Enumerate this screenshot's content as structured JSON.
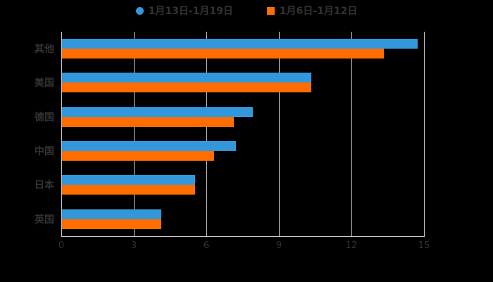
{
  "chart_data": {
    "type": "bar",
    "orientation": "horizontal",
    "title": "",
    "categories": [
      "其他",
      "美国",
      "德国",
      "中国",
      "日本",
      "英国"
    ],
    "series": [
      {
        "name": "1月13日-1月19日",
        "color": "#3398DB",
        "marker": "circle",
        "values": [
          14.7,
          10.3,
          7.9,
          7.2,
          5.5,
          4.1
        ]
      },
      {
        "name": "1月6日-1月12日",
        "color": "#FF6D00",
        "marker": "square",
        "values": [
          13.3,
          10.3,
          7.1,
          6.3,
          5.5,
          4.1
        ]
      }
    ],
    "xticks": [
      0,
      3,
      6,
      9,
      12,
      15
    ],
    "xlim": [
      0,
      15
    ],
    "grid": true,
    "legend_position": "top",
    "colors": {
      "background": "#000000",
      "text": "#333333",
      "axis": "#cccccc",
      "gridline": "#cccccc"
    }
  }
}
